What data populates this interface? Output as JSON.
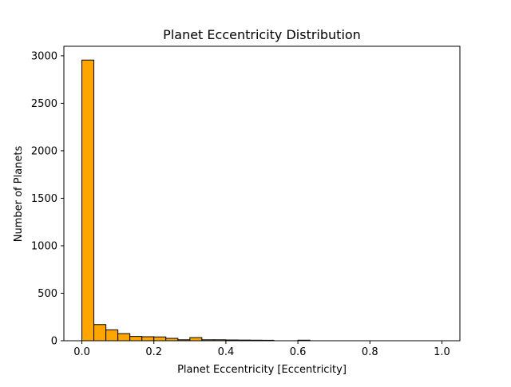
{
  "chart_data": {
    "type": "bar",
    "title": "Planet Eccentricity Distribution",
    "xlabel": "Planet Eccentricity [Eccentricity]",
    "ylabel": "Number of Planets",
    "xlim": [
      -0.05,
      1.05
    ],
    "ylim": [
      0,
      3100
    ],
    "xticks": [
      0.0,
      0.2,
      0.4,
      0.6,
      0.8,
      1.0
    ],
    "xtick_labels": [
      "0.0",
      "0.2",
      "0.4",
      "0.6",
      "0.8",
      "1.0"
    ],
    "yticks": [
      0,
      500,
      1000,
      1500,
      2000,
      2500,
      3000
    ],
    "ytick_labels": [
      "0",
      "500",
      "1000",
      "1500",
      "2000",
      "2500",
      "3000"
    ],
    "grid": false,
    "bar_color": "#ffa500",
    "edge_color": "#000000",
    "bins": {
      "edges": [
        0.0,
        0.0333,
        0.0667,
        0.1,
        0.1333,
        0.1667,
        0.2,
        0.2333,
        0.2667,
        0.3,
        0.3333,
        0.3667,
        0.4,
        0.4333,
        0.4667,
        0.5,
        0.5333,
        0.5667,
        0.6,
        0.6333,
        0.6667,
        0.7,
        0.7333,
        0.7667,
        0.8,
        0.8333,
        0.8667,
        0.9,
        0.9333,
        0.9667,
        1.0
      ],
      "counts": [
        2955,
        170,
        115,
        75,
        45,
        42,
        40,
        25,
        10,
        33,
        10,
        10,
        8,
        7,
        6,
        5,
        0,
        0,
        6,
        0,
        0,
        0,
        0,
        0,
        0,
        0,
        0,
        0,
        0,
        0
      ]
    }
  }
}
